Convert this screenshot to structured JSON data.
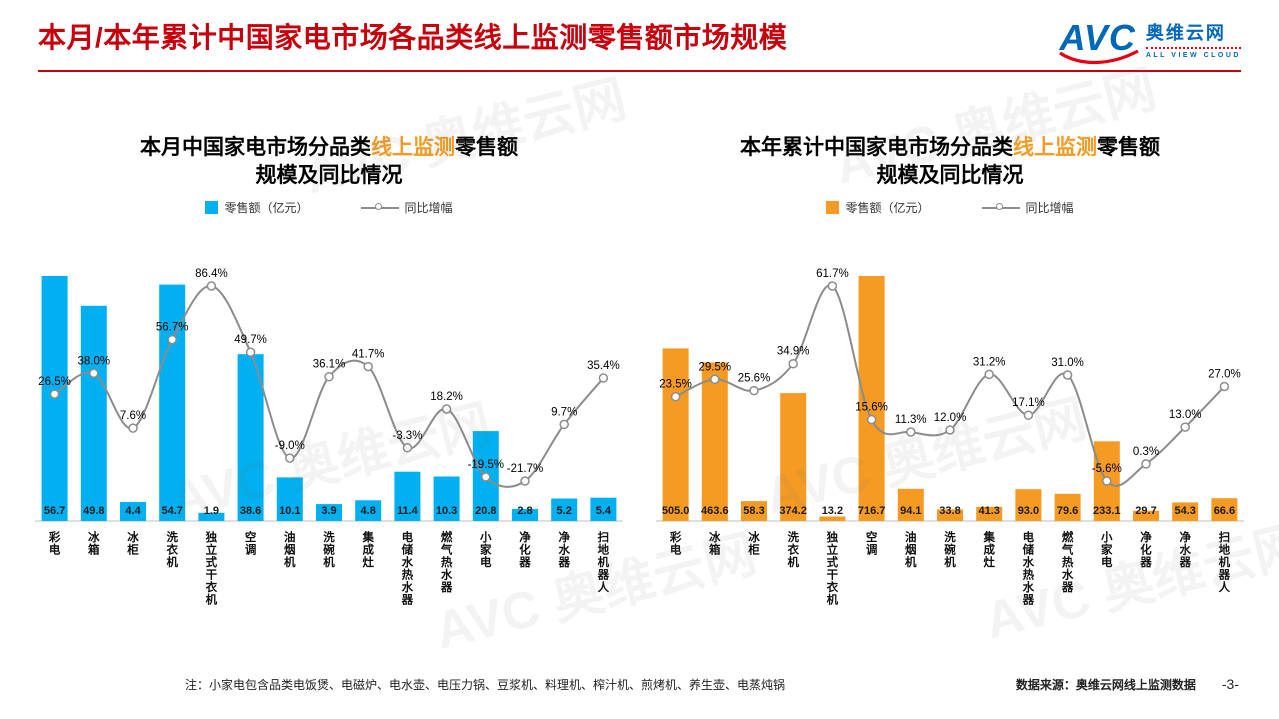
{
  "header": {
    "title": "本月/本年累计中国家电市场各品类线上监测零售额市场规模",
    "logo": {
      "mark": "AVC",
      "name": "奥维云网",
      "tagline": "ALL VIEW CLOUD"
    }
  },
  "watermark": {
    "text": "AVC 奥维云网"
  },
  "footer": {
    "note": "注：小家电包含品类电饭煲、电磁炉、电水壶、电压力锅、豆浆机、料理机、榨汁机、煎烤机、养生壶、电蒸炖锅",
    "source": "数据来源：奥维云网线上监测数据",
    "page": "-3-"
  },
  "chart_data": [
    {
      "type": "bar+line",
      "title": {
        "prefix": "本月中国家电市场分品类",
        "highlight": "线上监测",
        "suffix": "零售额",
        "line2": "规模及同比情况"
      },
      "legend": [
        {
          "label": "零售额（亿元）"
        },
        {
          "label": "同比增幅"
        }
      ],
      "categories": [
        "彩电",
        "冰箱",
        "冰柜",
        "洗衣机",
        "独立式干衣机",
        "空调",
        "油烟机",
        "洗碗机",
        "集成灶",
        "电储水热水器",
        "燃气热水器",
        "小家电",
        "净化器",
        "净水器",
        "扫地机器人"
      ],
      "series": [
        {
          "name": "零售额（亿元）",
          "type": "bar",
          "color": "#00B0F0",
          "values": [
            56.7,
            49.8,
            4.4,
            54.7,
            1.9,
            38.6,
            10.1,
            3.9,
            4.8,
            11.4,
            10.3,
            20.8,
            2.8,
            5.2,
            5.4
          ]
        },
        {
          "name": "同比增幅",
          "type": "line",
          "color": "#8C8C8C",
          "unit": "%",
          "values": [
            26.5,
            38.0,
            7.6,
            56.7,
            86.4,
            49.7,
            -9.0,
            36.1,
            41.7,
            -3.3,
            18.2,
            -19.5,
            -21.7,
            9.7,
            35.4
          ]
        }
      ]
    },
    {
      "type": "bar+line",
      "title": {
        "prefix": "本年累计中国家电市场分品类",
        "highlight": "线上监测",
        "suffix": "零售额",
        "line2": "规模及同比情况"
      },
      "legend": [
        {
          "label": "零售额（亿元）"
        },
        {
          "label": "同比增幅"
        }
      ],
      "categories": [
        "彩电",
        "冰箱",
        "冰柜",
        "洗衣机",
        "独立式干衣机",
        "空调",
        "油烟机",
        "洗碗机",
        "集成灶",
        "电储水热水器",
        "燃气热水器",
        "小家电",
        "净化器",
        "净水器",
        "扫地机器人"
      ],
      "series": [
        {
          "name": "零售额（亿元）",
          "type": "bar",
          "color": "#F59A23",
          "values": [
            505.0,
            463.6,
            58.3,
            374.2,
            13.2,
            716.7,
            94.1,
            33.8,
            41.3,
            93.0,
            79.6,
            233.1,
            29.7,
            54.3,
            66.6
          ]
        },
        {
          "name": "同比增幅",
          "type": "line",
          "color": "#8C8C8C",
          "unit": "%",
          "values": [
            23.5,
            29.5,
            25.6,
            34.9,
            61.7,
            15.6,
            11.3,
            12.0,
            31.2,
            17.1,
            31.0,
            -5.6,
            0.3,
            13.0,
            27.0
          ]
        }
      ]
    }
  ]
}
